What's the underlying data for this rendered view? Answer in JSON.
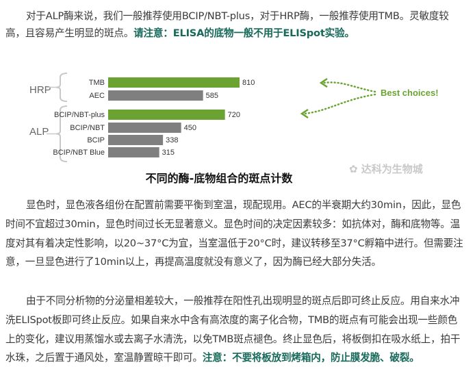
{
  "paragraph1": {
    "line1": "对于ALP酶来说，我们一般推荐使用BCIP/NBT-plus，对于HRP酶，一般推荐使用TMB。灵敏度较",
    "line2_plain": "高，且容易产生明显的斑点。",
    "line2_emph": "请注意：ELISA的底物一般不用于ELISpot实验。"
  },
  "chart_data": {
    "type": "bar",
    "orientation": "horizontal",
    "groups": [
      {
        "name": "HRP",
        "categories": [
          "TMB",
          "AEC"
        ],
        "values": [
          810,
          585
        ]
      },
      {
        "name": "ALP",
        "categories": [
          "BCIP/NBT-plus",
          "BCIP/NBT",
          "BCIP",
          "BCIP/NBT Blue"
        ],
        "values": [
          720,
          450,
          338,
          315
        ]
      }
    ],
    "highlighted": [
      "TMB",
      "BCIP/NBT-plus"
    ],
    "annotation": "Best choices!",
    "colors": {
      "highlight": "#6aa332",
      "default": "#7f7f7f"
    },
    "title": "不同的酶-底物组合的斑点计数"
  },
  "watermark": "达科为生物城",
  "paragraph2": {
    "lines": [
      "显色时，显色液各组份在配置前需要平衡到室温，现配现用。AEC的半衰期大约30min，因此，显色",
      "时间不宜超过30min，显色时间过长无显著意义。显色时间的决定因素较多：如抗体对，酶和底物等。温",
      "度对其有着决定性影响，以20~37°C为宜，当室温低于20°C时，建议转移至37°C孵箱中进行。但需要注",
      "意，一旦显色进行了10min以上，再提高温度就没有意义了，因为酶已经大部分失活。"
    ]
  },
  "paragraph3": {
    "lines": [
      "由于不同分析物的分泌量相差较大，一般推荐在阳性孔出现明显的斑点后即可终止反应。用自来水冲",
      "洗ELISpot板即可终止反应。如果自来水中含有高浓度的离子化合物，TMB的斑点有可能会出现一些颜色",
      "上的变化，建议用蒸馏水或去离子水清洗，以免TMB斑点褪色。终止显色后，将板倒扣在吸水纸上，拍干"
    ],
    "line4_plain": "水珠，之后置于通风处，室温静置晾干即可。",
    "line4_emph": "注意：不要将板放到烤箱内，防止膜发脆、破裂。"
  }
}
